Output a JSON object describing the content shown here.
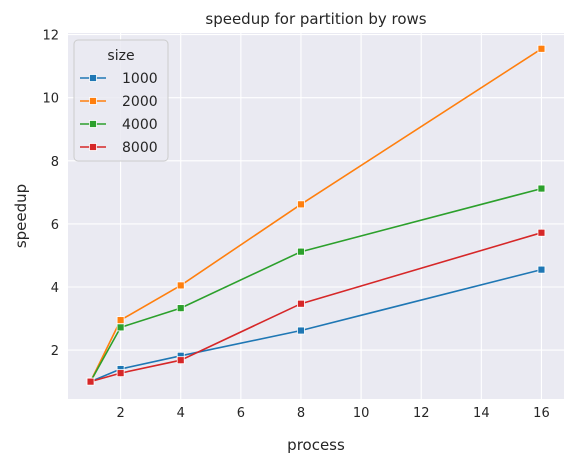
{
  "chart_data": {
    "type": "line",
    "title": "speedup for partition by rows",
    "xlabel": "process",
    "ylabel": "speedup",
    "x": [
      1,
      2,
      4,
      8,
      16
    ],
    "xticks": [
      2,
      4,
      6,
      8,
      10,
      12,
      14,
      16
    ],
    "yticks": [
      2,
      4,
      6,
      8,
      10,
      12
    ],
    "xlim": [
      0.25,
      16.75
    ],
    "ylim": [
      0.45,
      12.05
    ],
    "grid": true,
    "background": "#eaeaf2",
    "legend": {
      "title": "size",
      "placement": "top-left"
    },
    "series": [
      {
        "name": "1000",
        "color": "#1f77b4",
        "values": [
          1.0,
          1.4,
          1.82,
          2.62,
          4.55
        ]
      },
      {
        "name": "2000",
        "color": "#ff7f0e",
        "values": [
          1.0,
          2.95,
          4.05,
          6.62,
          11.55
        ]
      },
      {
        "name": "4000",
        "color": "#2ca02c",
        "values": [
          1.0,
          2.72,
          3.33,
          5.12,
          7.12
        ]
      },
      {
        "name": "8000",
        "color": "#d62728",
        "values": [
          1.0,
          1.27,
          1.68,
          3.47,
          5.72
        ]
      }
    ]
  }
}
